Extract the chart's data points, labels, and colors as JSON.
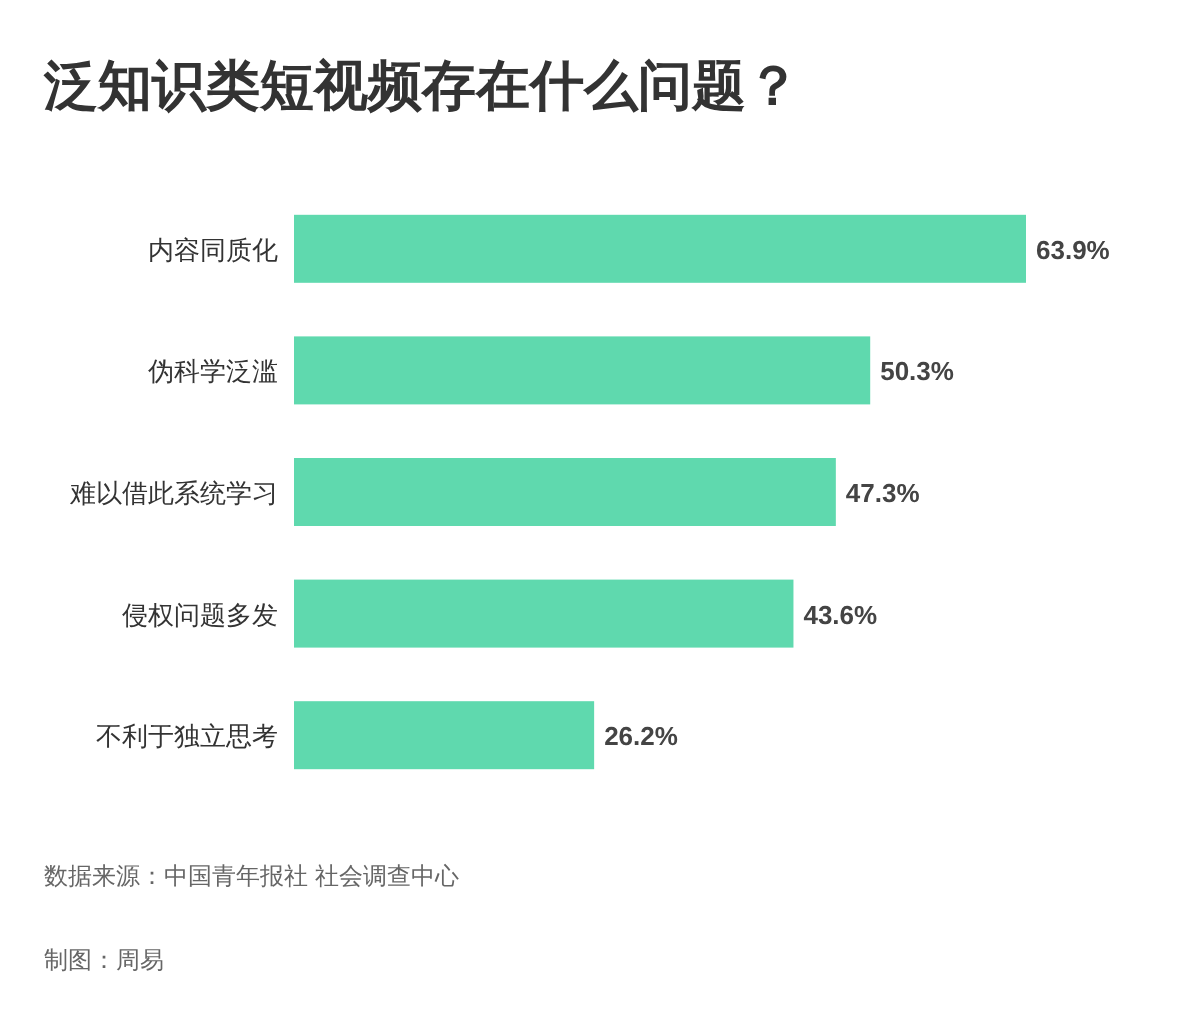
{
  "chart_data": {
    "type": "bar",
    "orientation": "horizontal",
    "title": "泛知识类短视频存在什么问题？",
    "categories": [
      "内容同质化",
      "伪科学泛滥",
      "难以借此系统学习",
      "侵权问题多发",
      "不利于独立思考"
    ],
    "values": [
      63.9,
      50.3,
      47.3,
      43.6,
      26.2
    ],
    "color": "#5fd9ae",
    "value_labels": [
      "63.9%",
      "50.3%",
      "47.3%",
      "43.6%",
      "26.2%"
    ],
    "annotations": [
      "数据来源：中国青年报社 社会调查中心",
      "制图：周易"
    ]
  }
}
